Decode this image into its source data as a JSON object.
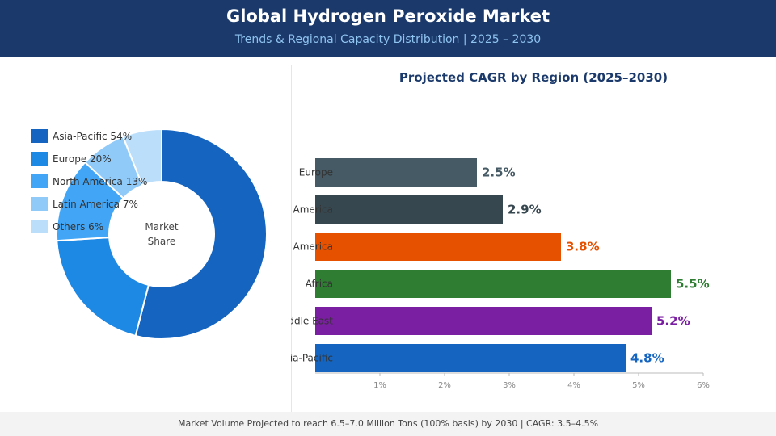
{
  "header": {
    "title": "Global Hydrogen Peroxide Market",
    "subtitle": "Trends & Regional Capacity Distribution  |  2025 – 2030"
  },
  "footer": {
    "note": "Market Volume Projected to reach 6.5–7.0 Million Tons (100% basis) by 2030  |  CAGR: 3.5–4.5%"
  },
  "chart_data": [
    {
      "type": "pie",
      "donut": true,
      "center_label": [
        "Market",
        "Share"
      ],
      "legend_position": "top-left",
      "slices": [
        {
          "label": "Asia-Pacific",
          "value": 54,
          "legend": "Asia-Pacific  54%",
          "color": "#1565c0"
        },
        {
          "label": "Europe",
          "value": 20,
          "legend": "Europe  20%",
          "color": "#1e88e5"
        },
        {
          "label": "North America",
          "value": 13,
          "legend": "North America  13%",
          "color": "#42a5f5"
        },
        {
          "label": "Latin America",
          "value": 7,
          "legend": "Latin America  7%",
          "color": "#90caf9"
        },
        {
          "label": "Others",
          "value": 6,
          "legend": "Others  6%",
          "color": "#bbdefb"
        }
      ]
    },
    {
      "type": "bar",
      "orientation": "horizontal",
      "title": "Projected CAGR by Region (2025–2030)",
      "categories": [
        "Europe",
        "North America",
        "Latin America",
        "Africa",
        "Middle East",
        "Asia-Pacific"
      ],
      "values": [
        2.5,
        2.9,
        3.8,
        5.5,
        5.2,
        4.8
      ],
      "value_labels": [
        "2.5%",
        "2.9%",
        "3.8%",
        "5.5%",
        "5.2%",
        "4.8%"
      ],
      "colors": [
        "#455a64",
        "#37474f",
        "#e65100",
        "#2e7d32",
        "#7b1fa2",
        "#1565c0"
      ],
      "label_colors": [
        "#455a64",
        "#37474f",
        "#e65100",
        "#2e7d32",
        "#7b1fa2",
        "#1565c0"
      ],
      "xlim": [
        0,
        6
      ],
      "x_ticks": [
        1,
        2,
        3,
        4,
        5,
        6
      ],
      "x_tick_labels": [
        "1%",
        "2%",
        "3%",
        "4%",
        "5%",
        "6%"
      ],
      "grid": false
    }
  ]
}
